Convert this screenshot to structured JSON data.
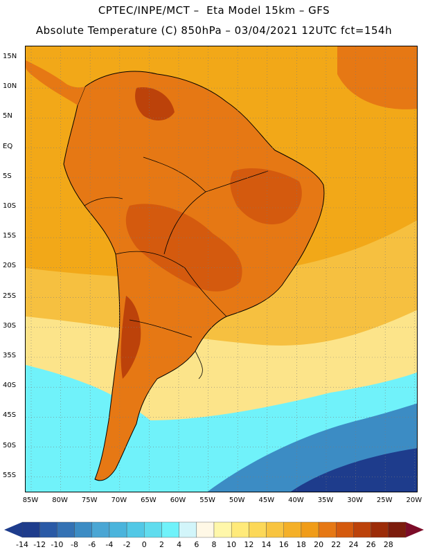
{
  "title": {
    "line1": "CPTEC/INPE/MCT –  Eta Model 15km – GFS",
    "line2": "Absolute Temperature (C) 850hPa – 03/04/2021 12UTC fct=154h"
  },
  "map": {
    "lat_labels": [
      "15N",
      "10N",
      "5N",
      "EQ",
      "5S",
      "10S",
      "15S",
      "20S",
      "25S",
      "30S",
      "35S",
      "40S",
      "45S",
      "50S",
      "55S"
    ],
    "lon_labels": [
      "85W",
      "80W",
      "75W",
      "70W",
      "65W",
      "60W",
      "55W",
      "50W",
      "45W",
      "40W",
      "35W",
      "30W",
      "25W",
      "20W"
    ],
    "gridline_style": "dotted"
  },
  "colorbar": {
    "labels": [
      "-14",
      "-12",
      "-10",
      "-8",
      "-6",
      "-4",
      "-2",
      "0",
      "2",
      "4",
      "6",
      "8",
      "10",
      "12",
      "14",
      "16",
      "18",
      "20",
      "22",
      "24",
      "26",
      "28"
    ],
    "colors": [
      "#1e3c8c",
      "#2a5aa6",
      "#3472b4",
      "#3c8cc4",
      "#4aa6d4",
      "#4ab4dc",
      "#52c8e6",
      "#60dcee",
      "#70f2fa",
      "#d2f5fa",
      "#fff8e6",
      "#fff7aa",
      "#ffea7a",
      "#fcd858",
      "#f8c440",
      "#f4b028",
      "#f09c18",
      "#e67814",
      "#d45a0e",
      "#bc420a",
      "#9c2c08",
      "#7c1c0c"
    ],
    "low_arrow_color": "#1e3c8c",
    "high_arrow_color": "#7c0c28"
  },
  "fills": {
    "ocean_warm": "#f2a818",
    "ocean_mid": "#f6c040",
    "ocean_cool": "#fce48a",
    "cold_water": "#70f2fa",
    "cold_deep": "#3c8cc4",
    "cold_deepest": "#1e3c8c",
    "land_hot": "#d45a0e",
    "land_hotter": "#bc420a",
    "land_warm": "#e67814"
  }
}
